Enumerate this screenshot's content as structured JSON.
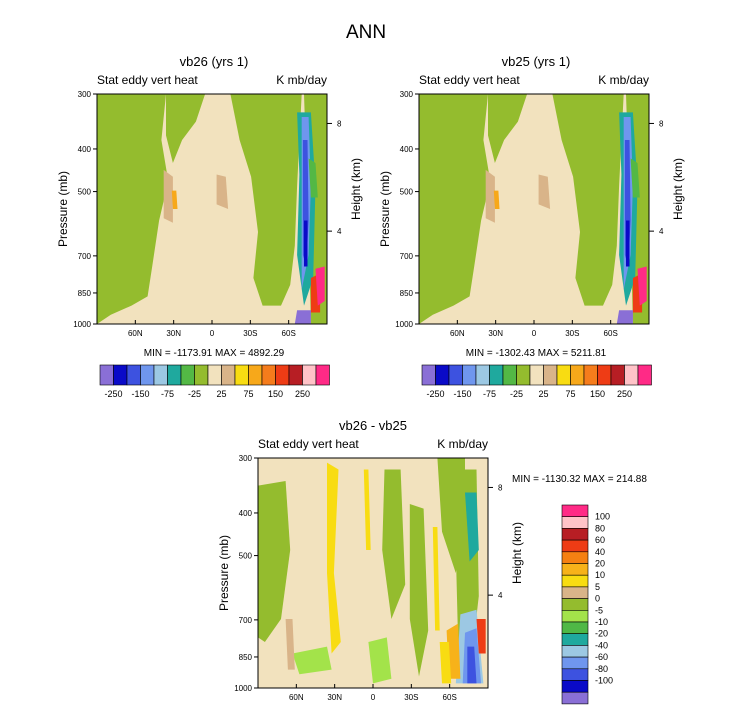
{
  "figure": {
    "title": "ANN",
    "colors": {
      "scale_24": [
        "#8a6fd6",
        "#0a0ac8",
        "#3d52e0",
        "#6f96ee",
        "#9cc8e3",
        "#1fa99e",
        "#53b845",
        "#94bc2e",
        "#f2e2be",
        "#d9b489",
        "#f8dc12",
        "#f7a81a",
        "#f57c1c",
        "#ee3c15",
        "#b71e24",
        "#ffc3c8",
        "#ff2a86"
      ],
      "diff_scale": [
        "#8a6fd6",
        "#0a0ac8",
        "#3d52e0",
        "#6f96ee",
        "#9cc8e3",
        "#1fa99e",
        "#4fb846",
        "#a3e34a",
        "#94bc2e",
        "#d9b489",
        "#f8dc12",
        "#f7b21a",
        "#f58012",
        "#ee3c15",
        "#b71e24",
        "#ffc3c8",
        "#ff2a86"
      ],
      "field_bg": "#f2e2be",
      "field_green": "#94bc2e"
    }
  },
  "panels": [
    {
      "title": "vb26 (yrs 1)",
      "left_label": "Stat eddy vert heat",
      "right_label": "K mb/day",
      "min_max": "MIN = -1173.91   MAX = 4892.29"
    },
    {
      "title": "vb25 (yrs 1)",
      "left_label": "Stat eddy vert heat",
      "right_label": "K mb/day",
      "min_max": "MIN = -1302.43   MAX = 5211.81"
    },
    {
      "title": "vb26 - vb25",
      "left_label": "Stat eddy vert heat",
      "right_label": "K mb/day",
      "min_max": "MIN = -1130.32   MAX = 214.88"
    }
  ],
  "axes": {
    "y_label": "Pressure (mb)",
    "y2_label": "Height (km)",
    "x_ticks": [
      "60N",
      "30N",
      "0",
      "30S",
      "60S"
    ],
    "y_ticks": [
      "300",
      "400",
      "500",
      "700",
      "850",
      "1000"
    ],
    "y2_ticks": [
      "8",
      "4"
    ]
  },
  "colorbars": {
    "horizontal_labels": [
      "-250",
      "-150",
      "-75",
      "-25",
      "25",
      "75",
      "150",
      "250"
    ],
    "vertical_labels": [
      "100",
      "80",
      "60",
      "40",
      "20",
      "10",
      "5",
      "0",
      "-5",
      "-10",
      "-20",
      "-40",
      "-60",
      "-80",
      "-100"
    ]
  },
  "chart_data": [
    {
      "type": "heatmap",
      "title": "vb26 (yrs 1)",
      "subtitle_left": "Stat eddy vert heat",
      "subtitle_right": "K mb/day",
      "xlabel": "",
      "ylabel": "Pressure (mb)",
      "y2label": "Height (km)",
      "x_ticks": [
        "60N",
        "30N",
        "0",
        "30S",
        "60S"
      ],
      "x_range": [
        90,
        -90
      ],
      "y_range": [
        1000,
        300
      ],
      "y_scale": "log",
      "y_ticks": [
        300,
        400,
        500,
        700,
        850,
        1000
      ],
      "y2_ticks": [
        8,
        4
      ],
      "min": -1173.91,
      "max": 4892.29,
      "contour_levels": [
        -250,
        -200,
        -150,
        -100,
        -75,
        -50,
        -25,
        0,
        25,
        50,
        75,
        100,
        150,
        200,
        250
      ],
      "colorbar": "horizontal"
    },
    {
      "type": "heatmap",
      "title": "vb25 (yrs 1)",
      "subtitle_left": "Stat eddy vert heat",
      "subtitle_right": "K mb/day",
      "xlabel": "",
      "ylabel": "Pressure (mb)",
      "y2label": "Height (km)",
      "x_ticks": [
        "60N",
        "30N",
        "0",
        "30S",
        "60S"
      ],
      "x_range": [
        90,
        -90
      ],
      "y_range": [
        1000,
        300
      ],
      "y_scale": "log",
      "y_ticks": [
        300,
        400,
        500,
        700,
        850,
        1000
      ],
      "y2_ticks": [
        8,
        4
      ],
      "min": -1302.43,
      "max": 5211.81,
      "contour_levels": [
        -250,
        -200,
        -150,
        -100,
        -75,
        -50,
        -25,
        0,
        25,
        50,
        75,
        100,
        150,
        200,
        250
      ],
      "colorbar": "horizontal"
    },
    {
      "type": "heatmap",
      "title": "vb26 - vb25",
      "subtitle_left": "Stat eddy vert heat",
      "subtitle_right": "K mb/day",
      "xlabel": "",
      "ylabel": "Pressure (mb)",
      "y2label": "Height (km)",
      "x_ticks": [
        "60N",
        "30N",
        "0",
        "30S",
        "60S"
      ],
      "x_range": [
        90,
        -90
      ],
      "y_range": [
        1000,
        300
      ],
      "y_scale": "log",
      "y_ticks": [
        300,
        400,
        500,
        700,
        850,
        1000
      ],
      "y2_ticks": [
        8,
        4
      ],
      "min": -1130.32,
      "max": 214.88,
      "contour_levels": [
        -100,
        -80,
        -60,
        -40,
        -20,
        -10,
        -5,
        0,
        5,
        10,
        20,
        40,
        60,
        80,
        100
      ],
      "colorbar": "vertical"
    }
  ]
}
